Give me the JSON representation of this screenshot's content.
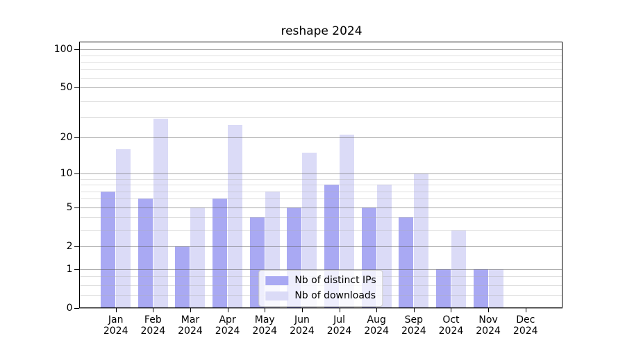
{
  "chart_data": {
    "type": "bar",
    "title": "reshape 2024",
    "categories": [
      "Jan",
      "Feb",
      "Mar",
      "Apr",
      "May",
      "Jun",
      "Jul",
      "Aug",
      "Sep",
      "Oct",
      "Nov",
      "Dec"
    ],
    "category_year": "2024",
    "series": [
      {
        "name": "Nb of distinct IPs",
        "color": "#a9a9f3",
        "values": [
          7,
          6,
          2,
          6,
          4,
          5,
          8,
          5,
          4,
          1,
          1,
          0
        ]
      },
      {
        "name": "Nb of downloads",
        "color": "#dbdbf7",
        "values": [
          16,
          28,
          5,
          25,
          7,
          15,
          21,
          8,
          10,
          3,
          1,
          0
        ]
      }
    ],
    "ylabel": "",
    "xlabel": "",
    "yscale": "log(1+x)",
    "ylim": [
      0,
      114
    ],
    "yticks_major": [
      0,
      1,
      2,
      5,
      10,
      20,
      50,
      100
    ],
    "yticks_minor": [
      0.25,
      0.5,
      0.75,
      3,
      4,
      6,
      7,
      8,
      9,
      29,
      39,
      59,
      69,
      79,
      89
    ],
    "grid": true,
    "legend_position": "lower center",
    "frame_color": "#000000",
    "background_color": "#ffffff"
  }
}
